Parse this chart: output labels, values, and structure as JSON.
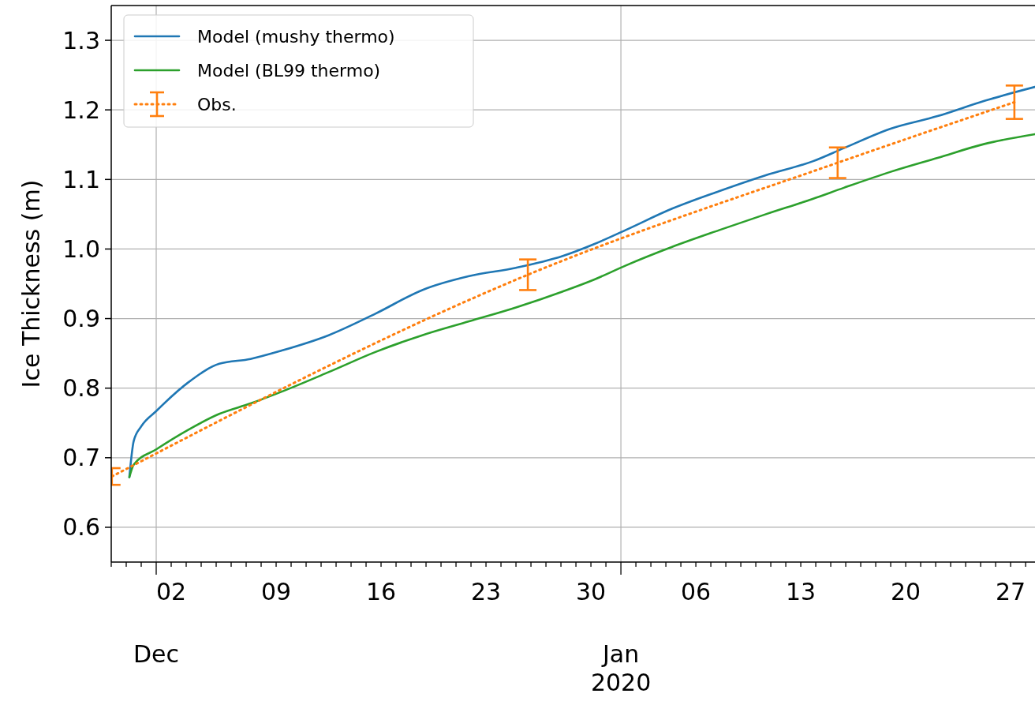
{
  "chart_data": {
    "type": "line",
    "ylabel": "Ice Thickness (m)",
    "xlim": [
      "2019-11-28",
      "2020-01-28T15:00"
    ],
    "ylim": [
      0.55,
      1.35
    ],
    "yticks": [
      0.6,
      0.7,
      0.8,
      0.9,
      {
        "value": 1.0,
        "label": "1.0"
      },
      1.1,
      1.2,
      1.3
    ],
    "annotations": [
      "Dec",
      "Jan\n2020"
    ],
    "xticks": [
      {
        "value": "2019-11-28",
        "label": null
      },
      {
        "value": "2019-11-29",
        "label": null
      },
      {
        "value": "2019-11-30",
        "label": null
      },
      {
        "value": "2019-12-01",
        "label": null
      },
      {
        "value": "2019-12-02",
        "label": "02"
      },
      {
        "value": "2019-12-03",
        "label": null
      },
      {
        "value": "2019-12-04",
        "label": null
      },
      {
        "value": "2019-12-05",
        "label": null
      },
      {
        "value": "2019-12-06",
        "label": null
      },
      {
        "value": "2019-12-07",
        "label": null
      },
      {
        "value": "2019-12-08",
        "label": null
      },
      {
        "value": "2019-12-09",
        "label": "09"
      },
      {
        "value": "2019-12-10",
        "label": null
      },
      {
        "value": "2019-12-11",
        "label": null
      },
      {
        "value": "2019-12-12",
        "label": null
      },
      {
        "value": "2019-12-13",
        "label": null
      },
      {
        "value": "2019-12-14",
        "label": null
      },
      {
        "value": "2019-12-15",
        "label": null
      },
      {
        "value": "2019-12-16",
        "label": "16"
      },
      {
        "value": "2019-12-17",
        "label": null
      },
      {
        "value": "2019-12-18",
        "label": null
      },
      {
        "value": "2019-12-19",
        "label": null
      },
      {
        "value": "2019-12-20",
        "label": null
      },
      {
        "value": "2019-12-21",
        "label": null
      },
      {
        "value": "2019-12-22",
        "label": null
      },
      {
        "value": "2019-12-23",
        "label": "23"
      },
      {
        "value": "2019-12-24",
        "label": null
      },
      {
        "value": "2019-12-25",
        "label": null
      },
      {
        "value": "2019-12-26",
        "label": null
      },
      {
        "value": "2019-12-27",
        "label": null
      },
      {
        "value": "2019-12-28",
        "label": null
      },
      {
        "value": "2019-12-29",
        "label": null
      },
      {
        "value": "2019-12-30",
        "label": "30"
      },
      {
        "value": "2019-12-31",
        "label": null
      },
      {
        "value": "2020-01-01",
        "label": null
      },
      {
        "value": "2020-01-02",
        "label": null
      },
      {
        "value": "2020-01-03",
        "label": null
      },
      {
        "value": "2020-01-04",
        "label": null
      },
      {
        "value": "2020-01-05",
        "label": null
      },
      {
        "value": "2020-01-06",
        "label": "06"
      },
      {
        "value": "2020-01-07",
        "label": null
      },
      {
        "value": "2020-01-08",
        "label": null
      },
      {
        "value": "2020-01-09",
        "label": null
      },
      {
        "value": "2020-01-10",
        "label": null
      },
      {
        "value": "2020-01-11",
        "label": null
      },
      {
        "value": "2020-01-12",
        "label": null
      },
      {
        "value": "2020-01-13",
        "label": "13"
      },
      {
        "value": "2020-01-14",
        "label": null
      },
      {
        "value": "2020-01-15",
        "label": null
      },
      {
        "value": "2020-01-16",
        "label": null
      },
      {
        "value": "2020-01-17",
        "label": null
      },
      {
        "value": "2020-01-18",
        "label": null
      },
      {
        "value": "2020-01-19",
        "label": null
      },
      {
        "value": "2020-01-20",
        "label": "20"
      },
      {
        "value": "2020-01-21",
        "label": null
      },
      {
        "value": "2020-01-22",
        "label": null
      },
      {
        "value": "2020-01-23",
        "label": null
      },
      {
        "value": "2020-01-24",
        "label": null
      },
      {
        "value": "2020-01-25",
        "label": null
      },
      {
        "value": "2020-01-26",
        "label": null
      },
      {
        "value": "2020-01-27",
        "label": "27"
      },
      {
        "value": "2020-01-28",
        "label": null
      }
    ],
    "grid": true,
    "legend": "top left",
    "marker": "none",
    "series": [
      {
        "name": "Model (mushy thermo)",
        "color": "#1f77b4",
        "x": [
          "2019-11-29T05:00",
          "2019-11-29T12:00",
          "2019-11-30",
          "2019-12-01",
          "2019-12-03T03:00",
          "2019-12-05T05:00",
          "2019-12-07T07:00",
          "2019-12-09T09:00",
          "2019-12-12T12:00",
          "2019-12-15T15:00",
          "2019-12-18T18:00",
          "2019-12-21T21:00",
          "2019-12-25",
          "2019-12-28T03:00",
          "2019-12-30T05:00",
          "2020-01-01T07:00",
          "2020-01-04T10:00",
          "2020-01-07T13:00",
          "2020-01-10T16:00",
          "2020-01-13T19:00",
          "2020-01-15T21:00",
          "2020-01-19",
          "2020-01-22T03:00",
          "2020-01-25T06:00",
          "2020-01-28T15:00"
        ],
        "values": [
          0.672,
          0.724,
          0.745,
          0.767,
          0.808,
          0.835,
          0.842,
          0.854,
          0.876,
          0.907,
          0.941,
          0.961,
          0.973,
          0.99,
          1.007,
          1.027,
          1.058,
          1.083,
          1.106,
          1.126,
          1.145,
          1.173,
          1.191,
          1.213,
          1.233
        ]
      },
      {
        "name": "Model (BL99 thermo)",
        "color": "#2ca02c",
        "x": [
          "2019-11-29T05:00",
          "2019-11-29T12:00",
          "2019-12-01",
          "2019-12-03T03:00",
          "2019-12-05T05:00",
          "2019-12-07T07:00",
          "2019-12-09T09:00",
          "2019-12-12T12:00",
          "2019-12-15T15:00",
          "2019-12-18T18:00",
          "2019-12-21T21:00",
          "2019-12-25",
          "2019-12-28T03:00",
          "2019-12-30T05:00",
          "2020-01-01T07:00",
          "2020-01-04T10:00",
          "2020-01-07T13:00",
          "2020-01-10T16:00",
          "2020-01-13T19:00",
          "2020-01-15T21:00",
          "2020-01-19",
          "2020-01-22T03:00",
          "2020-01-25T06:00",
          "2020-01-28T15:00"
        ],
        "values": [
          0.672,
          0.69,
          0.712,
          0.74,
          0.763,
          0.778,
          0.795,
          0.823,
          0.852,
          0.876,
          0.896,
          0.916,
          0.939,
          0.956,
          0.976,
          1.003,
          1.027,
          1.05,
          1.072,
          1.088,
          1.111,
          1.131,
          1.151,
          1.165
        ]
      },
      {
        "name": "Obs.",
        "color": "#ff7f0e",
        "line_style": "dotted",
        "x": [
          "2019-11-28T01:00",
          "2019-12-25T19:00",
          "2020-01-15T11:00",
          "2020-01-27T06:00"
        ],
        "values": [
          0.673,
          0.963,
          1.124,
          1.211
        ],
        "errors": [
          0.012,
          0.022,
          0.022,
          0.024
        ]
      }
    ]
  }
}
